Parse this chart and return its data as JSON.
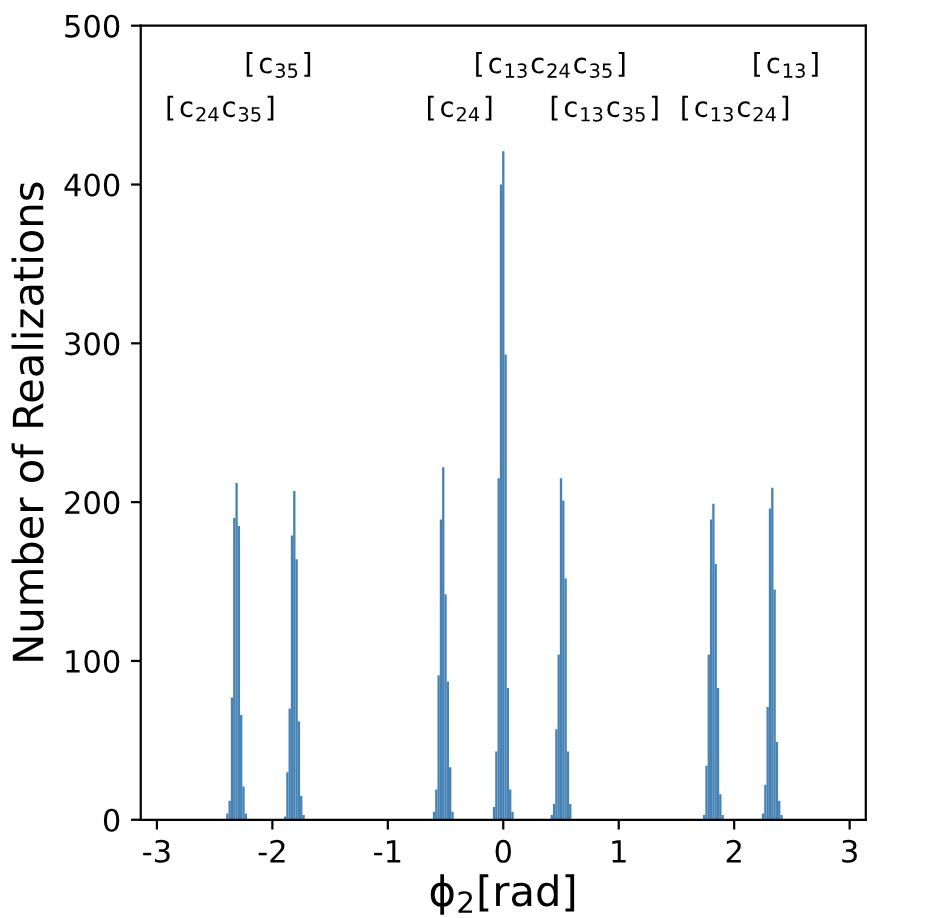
{
  "chart_data": {
    "type": "histogram",
    "xlabel": "ϕ$_{2}$[rad]",
    "ylabel": "Number of Realizations",
    "color": "#4682b4",
    "bins": [
      -2.4,
      -2.38,
      -2.36,
      -2.34,
      -2.32,
      -2.3,
      -2.28,
      -2.26,
      -2.24,
      -2.22,
      -1.9,
      -1.88,
      -1.86,
      -1.84,
      -1.82,
      -1.8,
      -1.78,
      -1.76,
      -1.74,
      -1.72,
      -0.61,
      -0.59,
      -0.57,
      -0.55,
      -0.53,
      -0.51,
      -0.49,
      -0.47,
      -0.45,
      -0.43,
      -0.09,
      -0.07,
      -0.05,
      -0.03,
      -0.01,
      0.01,
      0.03,
      0.05,
      0.07,
      0.09,
      0.41,
      0.43,
      0.45,
      0.47,
      0.49,
      0.51,
      0.53,
      0.55,
      0.57,
      0.59,
      1.73,
      1.75,
      1.77,
      1.79,
      1.81,
      1.83,
      1.85,
      1.87,
      1.89,
      1.91,
      2.24,
      2.26,
      2.28,
      2.3,
      2.32,
      2.34,
      2.36,
      2.38,
      2.4,
      2.42
    ],
    "values": [
      4,
      12,
      77,
      190,
      212,
      185,
      66,
      21,
      4,
      0,
      2,
      30,
      70,
      179,
      207,
      164,
      62,
      15,
      3,
      0,
      5,
      19,
      91,
      189,
      222,
      142,
      87,
      33,
      5,
      0,
      8,
      43,
      215,
      400,
      421,
      293,
      83,
      19,
      5,
      0,
      3,
      10,
      57,
      104,
      215,
      201,
      152,
      43,
      10,
      0,
      3,
      34,
      104,
      189,
      199,
      161,
      83,
      16,
      3,
      0,
      4,
      22,
      71,
      196,
      209,
      145,
      49,
      12,
      3
    ],
    "xlim": [
      -3.14,
      3.14
    ],
    "ylim": [
      0,
      500
    ],
    "xticks": [
      -3,
      -2,
      -1,
      0,
      1,
      2,
      3
    ],
    "yticks": [
      0,
      100,
      200,
      300,
      400,
      500
    ],
    "grid": false,
    "legend": false,
    "annotations": [
      "[c$_{24}$c$_{35}$]",
      "[c$_{35}$]",
      "[c$_{24}$]",
      "[c$_{13}$c$_{24}$c$_{35}$]",
      "[c$_{13}$c$_{35}$]",
      "[c$_{13}$c$_{24}$]",
      "[c$_{13}$]"
    ]
  }
}
